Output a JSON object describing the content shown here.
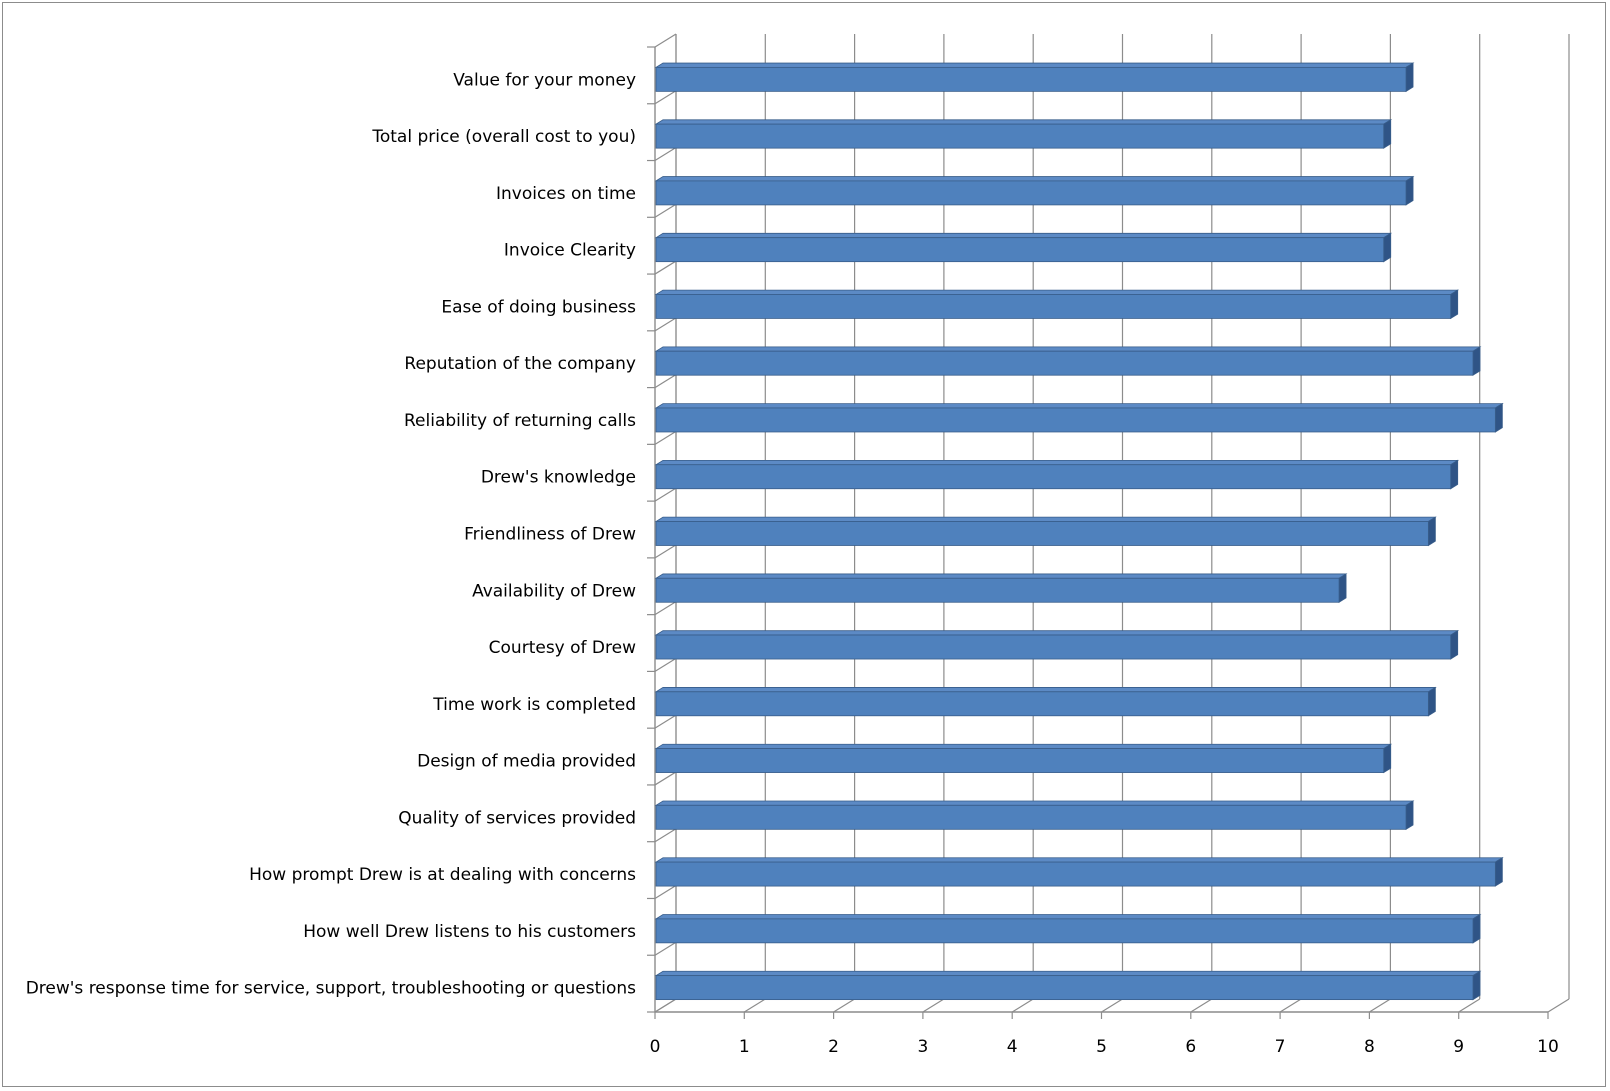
{
  "chart_data": {
    "type": "bar",
    "orientation": "horizontal",
    "style": "3d",
    "title": "",
    "xlabel": "",
    "ylabel": "",
    "xlim": [
      0,
      10
    ],
    "x_ticks": [
      "0",
      "1",
      "2",
      "3",
      "4",
      "5",
      "6",
      "7",
      "8",
      "9",
      "10"
    ],
    "grid": "vertical",
    "legend": "none",
    "categories": [
      "Value for your money",
      "Total price (overall cost to you)",
      "Invoices on time",
      "Invoice Clearity",
      "Ease of doing business",
      "Reputation of the company",
      "Reliability of returning calls",
      "Drew's knowledge",
      "Friendliness of Drew",
      "Availability of Drew",
      "Courtesy of Drew",
      "Time work is completed",
      "Design of media provided",
      "Quality of services provided",
      "How prompt Drew is at dealing with concerns",
      "How well Drew listens to his customers",
      "Drew's response time for service, support, troubleshooting or questions"
    ],
    "values": [
      8.5,
      8.25,
      8.5,
      8.25,
      9.0,
      9.25,
      9.5,
      9.0,
      8.75,
      7.75,
      9.0,
      8.75,
      8.25,
      8.5,
      9.5,
      9.25,
      9.25
    ],
    "colors": {
      "bar_front": "#4f81bd",
      "bar_top": "#5c8ac5",
      "bar_side": "#2f5486",
      "bar_edge": "#385d8a",
      "grid": "#8c8c8c",
      "axis": "#8c8c8c"
    }
  }
}
